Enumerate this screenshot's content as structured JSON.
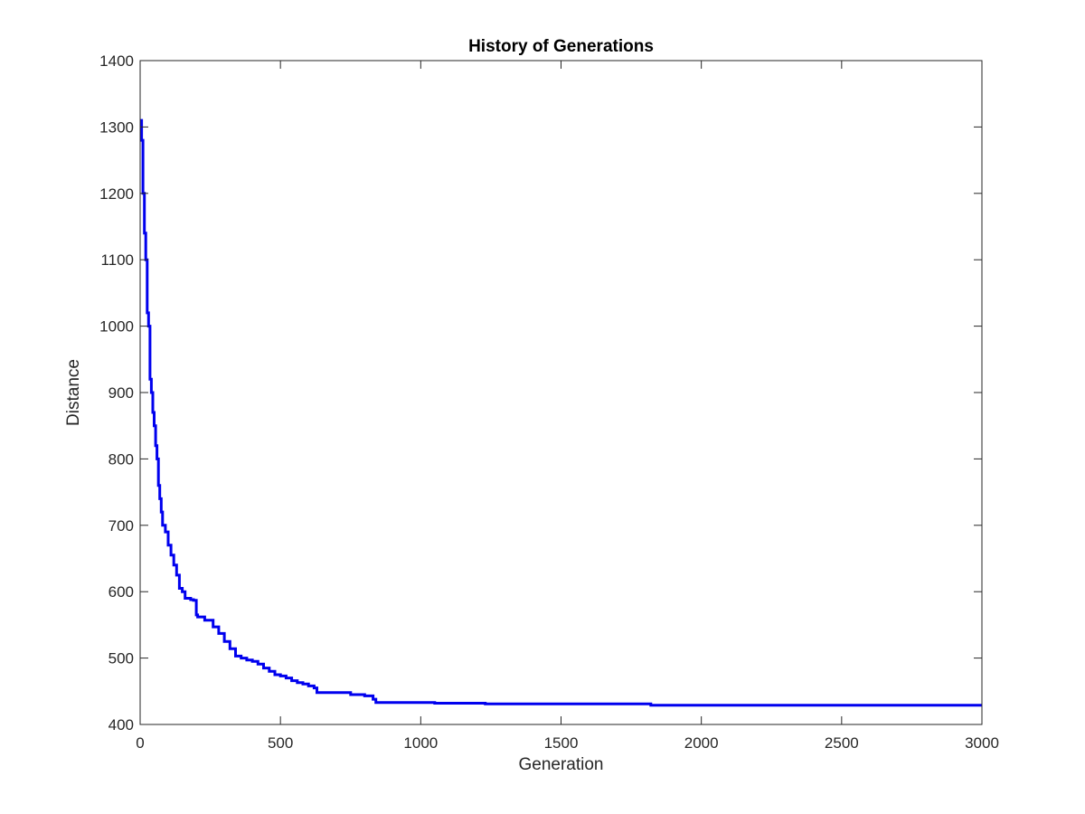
{
  "chart_data": {
    "type": "line",
    "title": "History of Generations",
    "xlabel": "Generation",
    "ylabel": "Distance",
    "xlim": [
      0,
      3000
    ],
    "ylim": [
      400,
      1400
    ],
    "xticks": [
      0,
      500,
      1000,
      1500,
      2000,
      2500,
      3000
    ],
    "yticks": [
      400,
      500,
      600,
      700,
      800,
      900,
      1000,
      1100,
      1200,
      1300,
      1400
    ],
    "xtick_labels": [
      "0",
      "500",
      "1000",
      "1500",
      "2000",
      "2500",
      "3000"
    ],
    "ytick_labels": [
      "400",
      "500",
      "600",
      "700",
      "800",
      "900",
      "1000",
      "1100",
      "1200",
      "1300",
      "1400"
    ],
    "grid": false,
    "series": [
      {
        "name": "Distance",
        "color": "#0000ee",
        "x": [
          0,
          5,
          10,
          15,
          20,
          25,
          30,
          35,
          40,
          45,
          50,
          55,
          60,
          65,
          70,
          75,
          80,
          90,
          100,
          110,
          120,
          130,
          140,
          150,
          160,
          170,
          180,
          190,
          200,
          205,
          230,
          260,
          280,
          300,
          320,
          340,
          360,
          380,
          400,
          420,
          440,
          460,
          480,
          500,
          520,
          540,
          560,
          580,
          600,
          620,
          630,
          700,
          750,
          800,
          830,
          840,
          900,
          1000,
          1050,
          1200,
          1230,
          1500,
          1800,
          1820,
          2000,
          2500,
          3000
        ],
        "y": [
          1310,
          1280,
          1200,
          1140,
          1100,
          1020,
          1000,
          920,
          900,
          870,
          850,
          820,
          800,
          760,
          740,
          720,
          700,
          690,
          670,
          655,
          640,
          625,
          605,
          600,
          590,
          590,
          588,
          587,
          565,
          562,
          557,
          547,
          537,
          525,
          514,
          503,
          500,
          497,
          495,
          491,
          485,
          480,
          475,
          473,
          470,
          466,
          463,
          461,
          458,
          455,
          448,
          448,
          445,
          443,
          438,
          433,
          433,
          433,
          432,
          432,
          431,
          431,
          431,
          429,
          429,
          429,
          429
        ]
      }
    ]
  }
}
